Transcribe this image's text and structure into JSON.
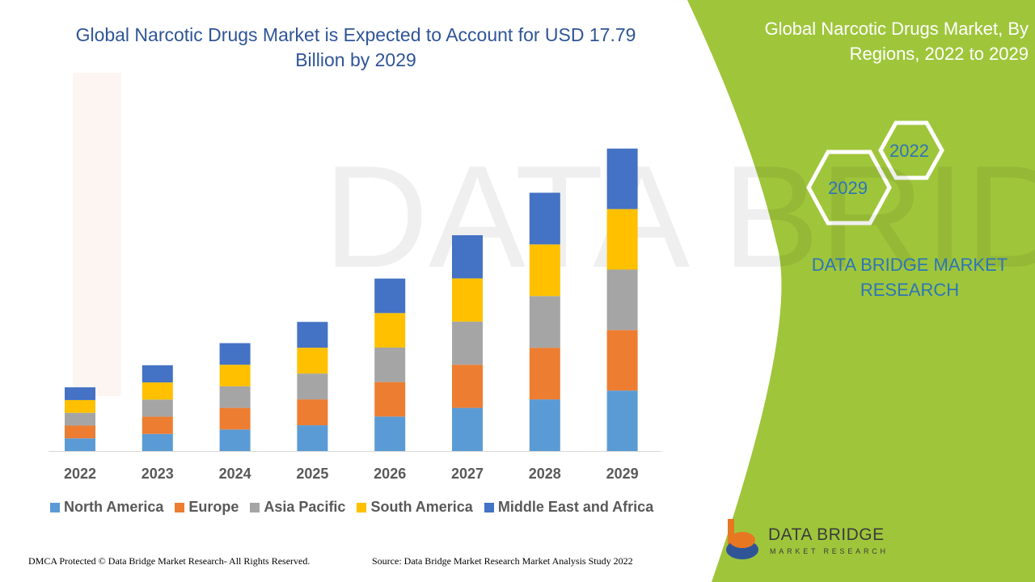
{
  "title": "Global Narcotic Drugs Market is Expected to Account for USD 17.79 Billion by 2029",
  "side_panel": {
    "title": "Global Narcotic Drugs Market, By Regions, 2022 to 2029",
    "hex_top": "2022",
    "hex_bottom": "2029",
    "brand": "DATA BRIDGE MARKET RESEARCH",
    "accent": "#9fc63b"
  },
  "footer": {
    "left": "DMCA Protected © Data Bridge Market Research- All Rights Reserved.",
    "right": "Source: Data Bridge Market Research Market Analysis Study 2022"
  },
  "logo": {
    "name": "DATA BRIDGE",
    "sub": "MARKET RESEARCH"
  },
  "chart_data": {
    "type": "bar",
    "stacked": true,
    "title": "",
    "xlabel": "",
    "ylabel": "",
    "grid": false,
    "legend": "bottom",
    "categories": [
      "2022",
      "2023",
      "2024",
      "2025",
      "2026",
      "2027",
      "2028",
      "2029"
    ],
    "series": [
      {
        "name": "North America",
        "color": "#5b9bd5",
        "values": [
          0.75,
          1.01,
          1.27,
          1.52,
          2.03,
          2.54,
          3.04,
          3.56
        ]
      },
      {
        "name": "Europe",
        "color": "#ed7d31",
        "values": [
          0.75,
          1.01,
          1.27,
          1.52,
          2.03,
          2.54,
          3.04,
          3.56
        ]
      },
      {
        "name": "Asia Pacific",
        "color": "#a5a5a5",
        "values": [
          0.75,
          1.01,
          1.27,
          1.52,
          2.03,
          2.54,
          3.04,
          3.56
        ]
      },
      {
        "name": "South America",
        "color": "#ffc000",
        "values": [
          0.75,
          1.01,
          1.27,
          1.52,
          2.03,
          2.54,
          3.04,
          3.56
        ]
      },
      {
        "name": "Middle East and Africa",
        "color": "#4472c4",
        "values": [
          0.75,
          1.01,
          1.27,
          1.52,
          2.03,
          2.54,
          3.04,
          3.56
        ]
      }
    ]
  }
}
